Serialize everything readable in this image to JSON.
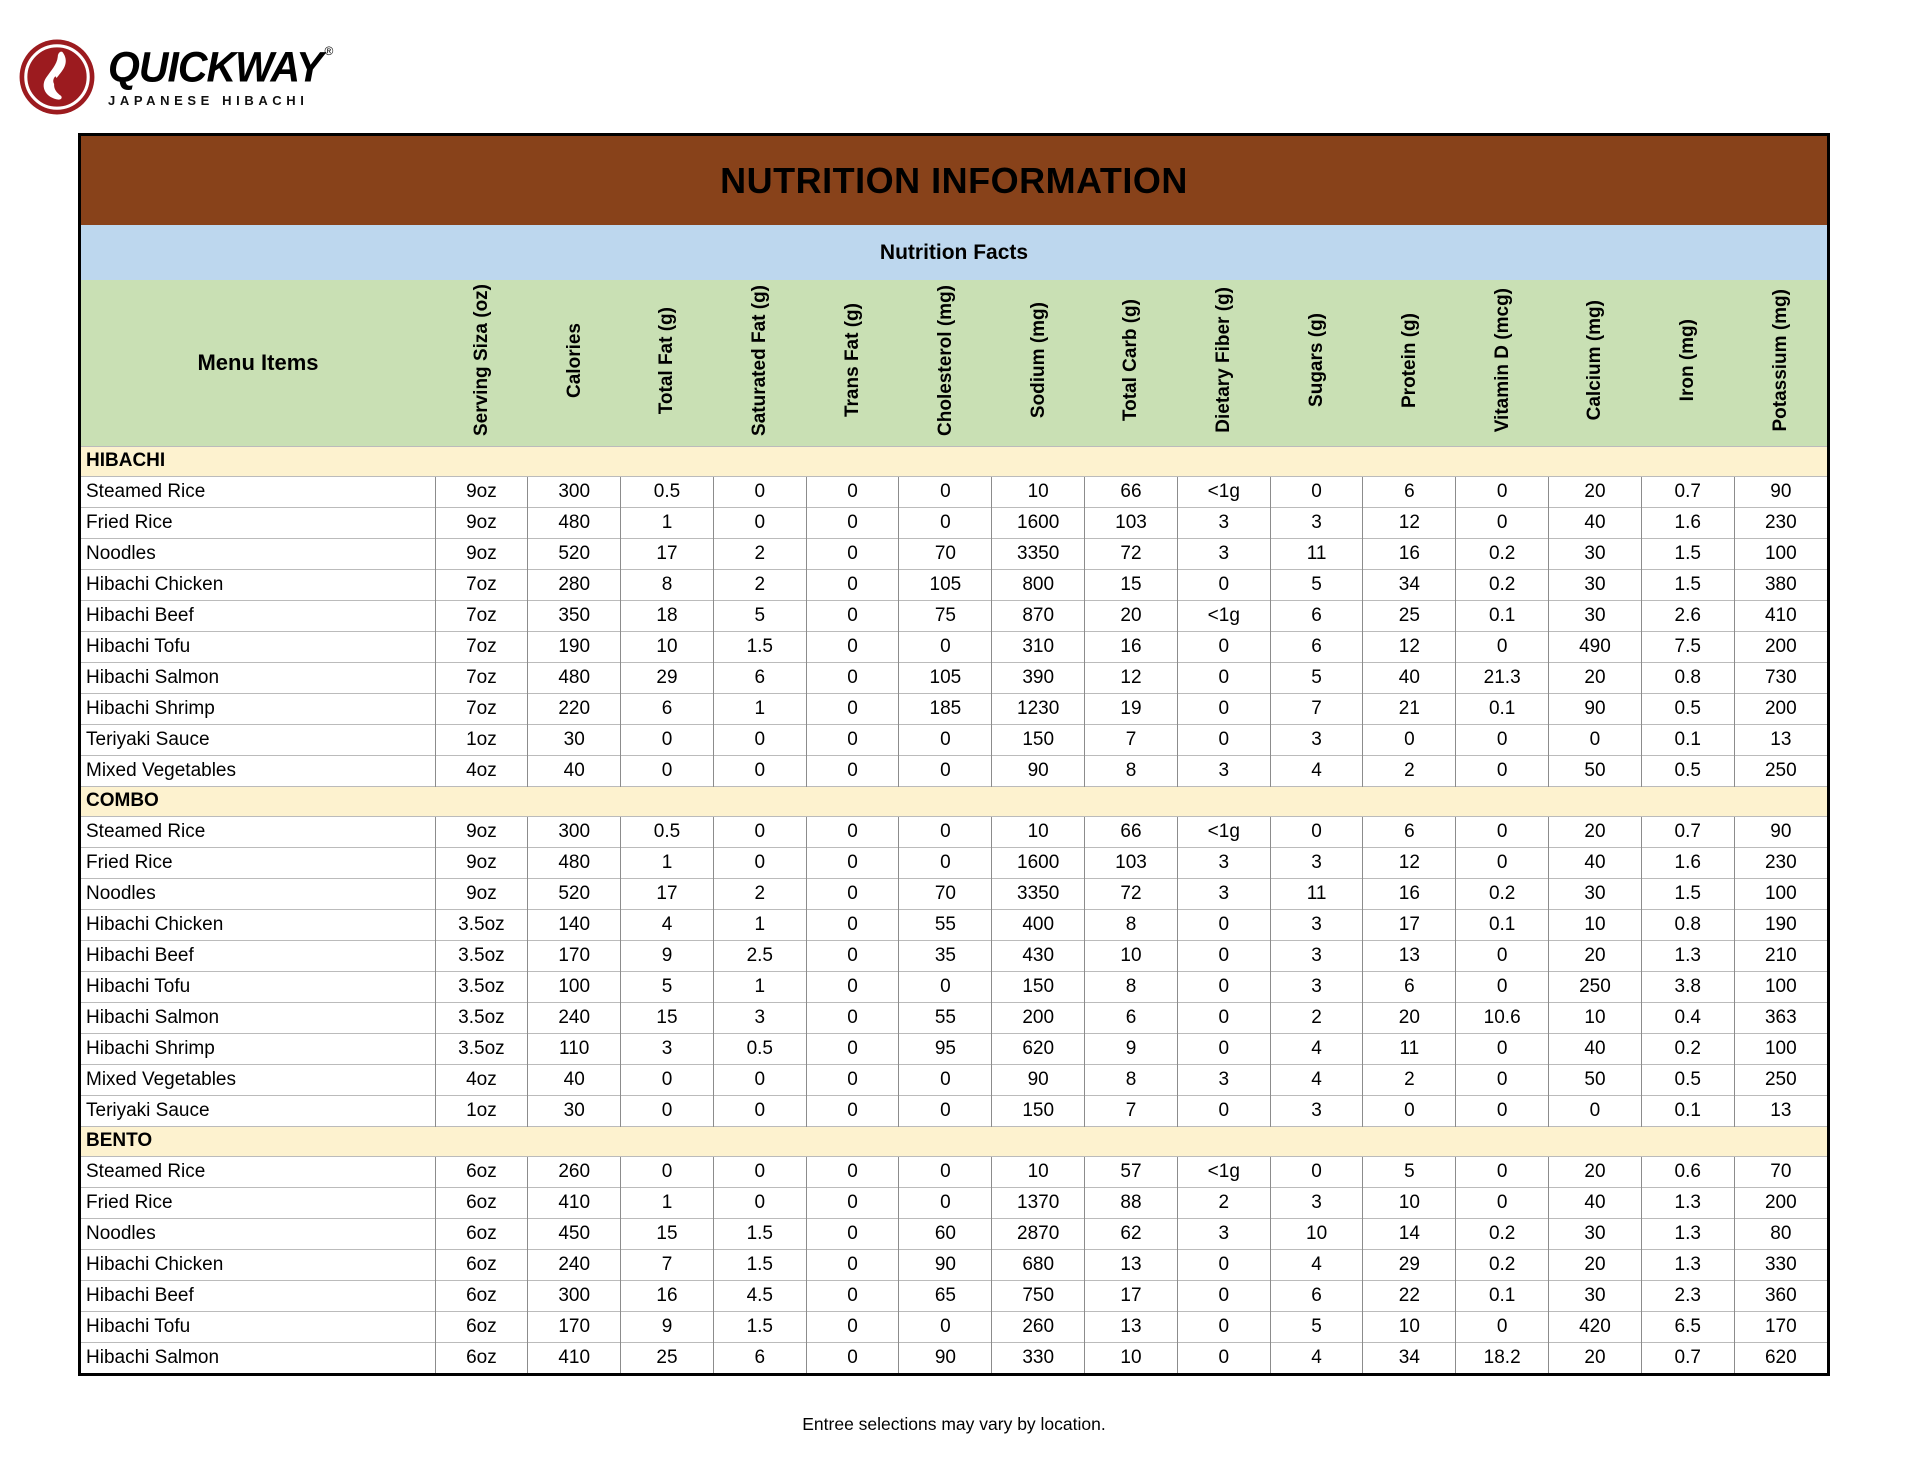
{
  "page": {
    "title": "NUTRITION INFORMATION",
    "subtitle": "Nutrition Facts",
    "footer": "Entree selections may vary by location."
  },
  "logo": {
    "brand": "QUICKWAY",
    "registered_mark": "®",
    "tagline": "JAPANESE HIBACHI"
  },
  "colors": {
    "header_band": "#88421A",
    "subtitle_band": "#BDD7EE",
    "column_header_band": "#C9E0B4",
    "section_band": "#FDF2CF",
    "logo_red": "#9C1B1F",
    "grid_vertical": "#8C8C8C",
    "grid_horizontal": "#BBBBBB"
  },
  "table": {
    "item_column_header": "Menu Items",
    "columns": [
      "Serving Siza (oz)",
      "Calories",
      "Total Fat (g)",
      "Saturated Fat (g)",
      "Trans Fat (g)",
      "Cholesterol (mg)",
      "Sodium (mg)",
      "Total Carb (g)",
      "Dietary Fiber (g)",
      "Sugars (g)",
      "Protein (g)",
      "Vitamin D (mcg)",
      "Calcium (mg)",
      "Iron (mg)",
      "Potassium (mg)"
    ],
    "sections": [
      {
        "name": "HIBACHI",
        "rows": [
          {
            "item": "Steamed Rice",
            "values": [
              "9oz",
              "300",
              "0.5",
              "0",
              "0",
              "0",
              "10",
              "66",
              "<1g",
              "0",
              "6",
              "0",
              "20",
              "0.7",
              "90"
            ]
          },
          {
            "item": "Fried Rice",
            "values": [
              "9oz",
              "480",
              "1",
              "0",
              "0",
              "0",
              "1600",
              "103",
              "3",
              "3",
              "12",
              "0",
              "40",
              "1.6",
              "230"
            ]
          },
          {
            "item": "Noodles",
            "values": [
              "9oz",
              "520",
              "17",
              "2",
              "0",
              "70",
              "3350",
              "72",
              "3",
              "11",
              "16",
              "0.2",
              "30",
              "1.5",
              "100"
            ]
          },
          {
            "item": "Hibachi Chicken",
            "values": [
              "7oz",
              "280",
              "8",
              "2",
              "0",
              "105",
              "800",
              "15",
              "0",
              "5",
              "34",
              "0.2",
              "30",
              "1.5",
              "380"
            ]
          },
          {
            "item": "Hibachi Beef",
            "values": [
              "7oz",
              "350",
              "18",
              "5",
              "0",
              "75",
              "870",
              "20",
              "<1g",
              "6",
              "25",
              "0.1",
              "30",
              "2.6",
              "410"
            ]
          },
          {
            "item": "Hibachi Tofu",
            "values": [
              "7oz",
              "190",
              "10",
              "1.5",
              "0",
              "0",
              "310",
              "16",
              "0",
              "6",
              "12",
              "0",
              "490",
              "7.5",
              "200"
            ]
          },
          {
            "item": "Hibachi Salmon",
            "values": [
              "7oz",
              "480",
              "29",
              "6",
              "0",
              "105",
              "390",
              "12",
              "0",
              "5",
              "40",
              "21.3",
              "20",
              "0.8",
              "730"
            ]
          },
          {
            "item": "Hibachi Shrimp",
            "values": [
              "7oz",
              "220",
              "6",
              "1",
              "0",
              "185",
              "1230",
              "19",
              "0",
              "7",
              "21",
              "0.1",
              "90",
              "0.5",
              "200"
            ]
          },
          {
            "item": "Teriyaki Sauce",
            "values": [
              "1oz",
              "30",
              "0",
              "0",
              "0",
              "0",
              "150",
              "7",
              "0",
              "3",
              "0",
              "0",
              "0",
              "0.1",
              "13"
            ]
          },
          {
            "item": "Mixed Vegetables",
            "values": [
              "4oz",
              "40",
              "0",
              "0",
              "0",
              "0",
              "90",
              "8",
              "3",
              "4",
              "2",
              "0",
              "50",
              "0.5",
              "250"
            ]
          }
        ]
      },
      {
        "name": "COMBO",
        "rows": [
          {
            "item": "Steamed Rice",
            "values": [
              "9oz",
              "300",
              "0.5",
              "0",
              "0",
              "0",
              "10",
              "66",
              "<1g",
              "0",
              "6",
              "0",
              "20",
              "0.7",
              "90"
            ]
          },
          {
            "item": "Fried Rice",
            "values": [
              "9oz",
              "480",
              "1",
              "0",
              "0",
              "0",
              "1600",
              "103",
              "3",
              "3",
              "12",
              "0",
              "40",
              "1.6",
              "230"
            ]
          },
          {
            "item": "Noodles",
            "values": [
              "9oz",
              "520",
              "17",
              "2",
              "0",
              "70",
              "3350",
              "72",
              "3",
              "11",
              "16",
              "0.2",
              "30",
              "1.5",
              "100"
            ]
          },
          {
            "item": "Hibachi Chicken",
            "values": [
              "3.5oz",
              "140",
              "4",
              "1",
              "0",
              "55",
              "400",
              "8",
              "0",
              "3",
              "17",
              "0.1",
              "10",
              "0.8",
              "190"
            ]
          },
          {
            "item": "Hibachi Beef",
            "values": [
              "3.5oz",
              "170",
              "9",
              "2.5",
              "0",
              "35",
              "430",
              "10",
              "0",
              "3",
              "13",
              "0",
              "20",
              "1.3",
              "210"
            ]
          },
          {
            "item": "Hibachi Tofu",
            "values": [
              "3.5oz",
              "100",
              "5",
              "1",
              "0",
              "0",
              "150",
              "8",
              "0",
              "3",
              "6",
              "0",
              "250",
              "3.8",
              "100"
            ]
          },
          {
            "item": "Hibachi Salmon",
            "values": [
              "3.5oz",
              "240",
              "15",
              "3",
              "0",
              "55",
              "200",
              "6",
              "0",
              "2",
              "20",
              "10.6",
              "10",
              "0.4",
              "363"
            ]
          },
          {
            "item": "Hibachi Shrimp",
            "values": [
              "3.5oz",
              "110",
              "3",
              "0.5",
              "0",
              "95",
              "620",
              "9",
              "0",
              "4",
              "11",
              "0",
              "40",
              "0.2",
              "100"
            ]
          },
          {
            "item": "Mixed Vegetables",
            "values": [
              "4oz",
              "40",
              "0",
              "0",
              "0",
              "0",
              "90",
              "8",
              "3",
              "4",
              "2",
              "0",
              "50",
              "0.5",
              "250"
            ]
          },
          {
            "item": "Teriyaki Sauce",
            "values": [
              "1oz",
              "30",
              "0",
              "0",
              "0",
              "0",
              "150",
              "7",
              "0",
              "3",
              "0",
              "0",
              "0",
              "0.1",
              "13"
            ]
          }
        ]
      },
      {
        "name": "BENTO",
        "rows": [
          {
            "item": "Steamed Rice",
            "values": [
              "6oz",
              "260",
              "0",
              "0",
              "0",
              "0",
              "10",
              "57",
              "<1g",
              "0",
              "5",
              "0",
              "20",
              "0.6",
              "70"
            ]
          },
          {
            "item": "Fried Rice",
            "values": [
              "6oz",
              "410",
              "1",
              "0",
              "0",
              "0",
              "1370",
              "88",
              "2",
              "3",
              "10",
              "0",
              "40",
              "1.3",
              "200"
            ]
          },
          {
            "item": "Noodles",
            "values": [
              "6oz",
              "450",
              "15",
              "1.5",
              "0",
              "60",
              "2870",
              "62",
              "3",
              "10",
              "14",
              "0.2",
              "30",
              "1.3",
              "80"
            ]
          },
          {
            "item": "Hibachi Chicken",
            "values": [
              "6oz",
              "240",
              "7",
              "1.5",
              "0",
              "90",
              "680",
              "13",
              "0",
              "4",
              "29",
              "0.2",
              "20",
              "1.3",
              "330"
            ]
          },
          {
            "item": "Hibachi Beef",
            "values": [
              "6oz",
              "300",
              "16",
              "4.5",
              "0",
              "65",
              "750",
              "17",
              "0",
              "6",
              "22",
              "0.1",
              "30",
              "2.3",
              "360"
            ]
          },
          {
            "item": "Hibachi Tofu",
            "values": [
              "6oz",
              "170",
              "9",
              "1.5",
              "0",
              "0",
              "260",
              "13",
              "0",
              "5",
              "10",
              "0",
              "420",
              "6.5",
              "170"
            ]
          },
          {
            "item": "Hibachi Salmon",
            "values": [
              "6oz",
              "410",
              "25",
              "6",
              "0",
              "90",
              "330",
              "10",
              "0",
              "4",
              "34",
              "18.2",
              "20",
              "0.7",
              "620"
            ]
          }
        ]
      }
    ]
  }
}
